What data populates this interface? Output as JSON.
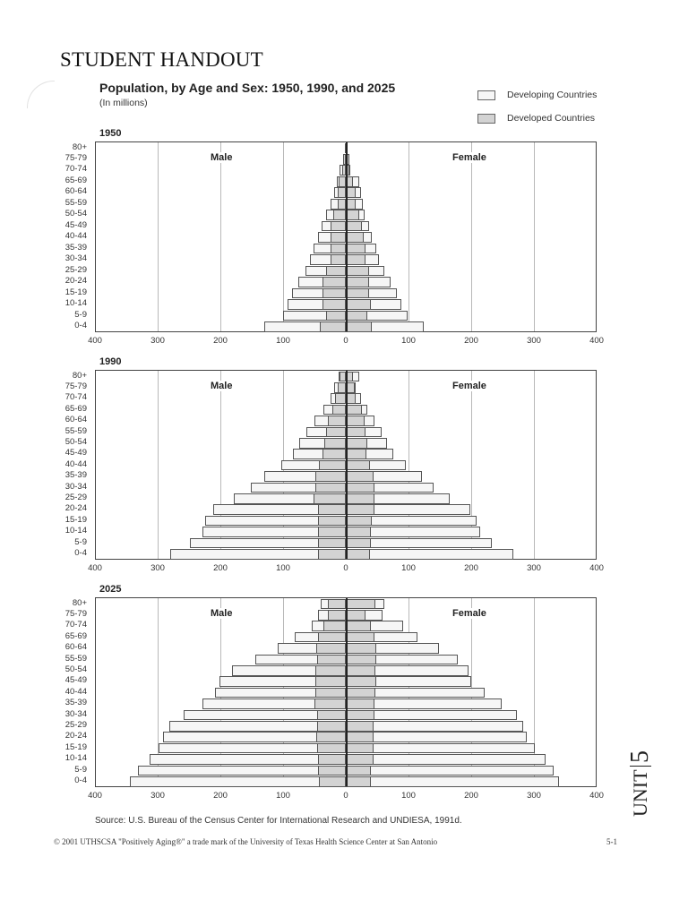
{
  "header": {
    "handout_title": "STUDENT HANDOUT",
    "chart_title": "Population, by Age and Sex:  1950, 1990, and 2025",
    "chart_subtitle": "(In millions)"
  },
  "legend": {
    "items": [
      {
        "label": "Developing Countries",
        "color": "#f6f6f6"
      },
      {
        "label": "Developed Countries",
        "color": "#d3d3d3"
      }
    ]
  },
  "labels": {
    "male": "Male",
    "female": "Female"
  },
  "footer": {
    "source": "Source: U.S. Bureau of the Census Center for International Research and UNDIESA, 1991d.",
    "copyright": "© 2001 UTHSCSA \"Positively Aging®\" a trade mark of the University of Texas Health Science Center at San Antonio",
    "page_number": "5-1",
    "unit_word": "UNIT",
    "unit_number": "5"
  },
  "chart_data": [
    {
      "type": "bar",
      "subtype": "population-pyramid",
      "title": "1950",
      "xlabel": "",
      "ylabel": "",
      "xlim": [
        -400,
        400
      ],
      "x_ticks": [
        "400",
        "300",
        "200",
        "100",
        "0",
        "100",
        "200",
        "300",
        "400"
      ],
      "grid": true,
      "legend_position": "top-right",
      "categories": [
        "80+",
        "75-79",
        "70-74",
        "65-69",
        "60-64",
        "55-59",
        "50-54",
        "45-49",
        "40-44",
        "35-39",
        "30-34",
        "25-29",
        "20-24",
        "15-19",
        "10-14",
        "5-9",
        "0-4"
      ],
      "series": [
        {
          "name": "Male total (Developing + Developed)",
          "values": [
            2,
            4,
            10,
            15,
            18,
            25,
            31,
            39,
            44,
            52,
            57,
            65,
            76,
            86,
            93,
            100,
            130
          ]
        },
        {
          "name": "Male Developed Countries",
          "values": [
            2,
            4,
            6,
            12,
            13,
            13,
            20,
            24,
            24,
            25,
            24,
            31,
            37,
            37,
            37,
            32,
            42
          ]
        },
        {
          "name": "Female total (Developing + Developed)",
          "values": [
            2,
            6,
            7,
            21,
            24,
            27,
            30,
            37,
            41,
            49,
            53,
            62,
            71,
            81,
            88,
            98,
            124
          ]
        },
        {
          "name": "Female Developed Countries",
          "values": [
            2,
            5,
            6,
            12,
            16,
            16,
            21,
            25,
            29,
            32,
            32,
            37,
            37,
            37,
            40,
            34,
            41
          ]
        }
      ]
    },
    {
      "type": "bar",
      "subtype": "population-pyramid",
      "title": "1990",
      "xlabel": "",
      "ylabel": "",
      "xlim": [
        -400,
        400
      ],
      "x_ticks": [
        "400",
        "300",
        "200",
        "100",
        "0",
        "100",
        "200",
        "300",
        "400"
      ],
      "grid": true,
      "categories": [
        "80+",
        "75-79",
        "70-74",
        "65-69",
        "60-64",
        "55-59",
        "50-54",
        "45-49",
        "40-44",
        "35-39",
        "30-34",
        "25-29",
        "20-24",
        "15-19",
        "10-14",
        "5-9",
        "0-4"
      ],
      "series": [
        {
          "name": "Male total (Developing + Developed)",
          "values": [
            11,
            18,
            25,
            36,
            50,
            63,
            74,
            85,
            103,
            130,
            151,
            179,
            211,
            225,
            228,
            248,
            280
          ]
        },
        {
          "name": "Male Developed Countries",
          "values": [
            10,
            13,
            17,
            21,
            29,
            32,
            35,
            37,
            43,
            48,
            48,
            51,
            45,
            45,
            45,
            44,
            44
          ]
        },
        {
          "name": "Female total (Developing + Developed)",
          "values": [
            21,
            16,
            24,
            34,
            46,
            57,
            66,
            76,
            95,
            122,
            140,
            166,
            199,
            209,
            214,
            233,
            267
          ]
        },
        {
          "name": "Female Developed Countries",
          "values": [
            12,
            14,
            16,
            26,
            30,
            32,
            34,
            33,
            38,
            44,
            46,
            46,
            46,
            41,
            40,
            40,
            39
          ]
        }
      ]
    },
    {
      "type": "bar",
      "subtype": "population-pyramid",
      "title": "2025",
      "xlabel": "",
      "ylabel": "",
      "xlim": [
        -400,
        400
      ],
      "x_ticks": [
        "400",
        "300",
        "200",
        "100",
        "0",
        "100",
        "200",
        "300",
        "400"
      ],
      "grid": true,
      "categories": [
        "80+",
        "75-79",
        "70-74",
        "65-69",
        "60-64",
        "55-59",
        "50-54",
        "45-49",
        "40-44",
        "35-39",
        "30-34",
        "25-29",
        "20-24",
        "15-19",
        "10-14",
        "5-9",
        "0-4"
      ],
      "series": [
        {
          "name": "Male total (Developing + Developed)",
          "values": [
            40,
            44,
            55,
            82,
            109,
            145,
            182,
            202,
            208,
            229,
            258,
            281,
            292,
            299,
            313,
            331,
            345
          ]
        },
        {
          "name": "Male Developed Countries",
          "values": [
            28,
            28,
            36,
            45,
            47,
            46,
            48,
            48,
            48,
            50,
            46,
            46,
            47,
            46,
            45,
            44,
            43
          ]
        },
        {
          "name": "Female total (Developing + Developed)",
          "values": [
            62,
            58,
            92,
            114,
            148,
            179,
            196,
            200,
            222,
            248,
            273,
            283,
            288,
            301,
            318,
            332,
            340
          ]
        },
        {
          "name": "Female Developed Countries",
          "values": [
            47,
            32,
            40,
            46,
            49,
            49,
            47,
            49,
            47,
            45,
            46,
            44,
            44,
            44,
            44,
            40,
            40
          ]
        }
      ]
    }
  ]
}
